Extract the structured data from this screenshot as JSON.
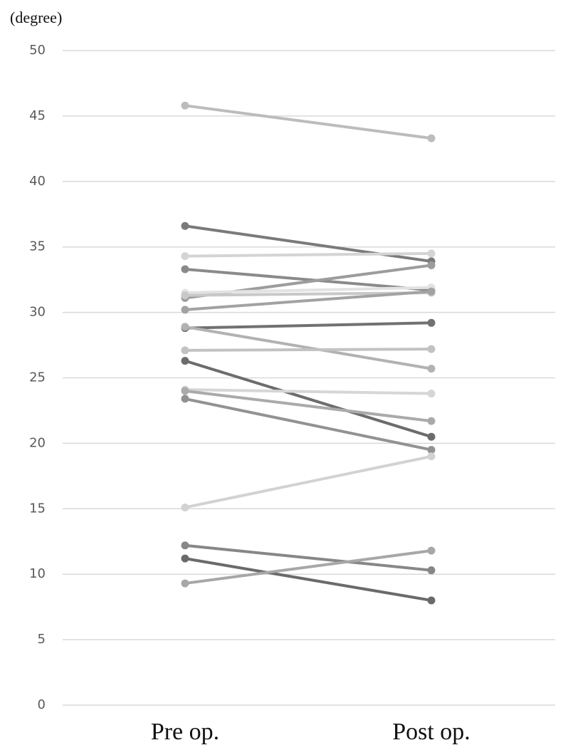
{
  "chart_data": {
    "type": "line",
    "y_label": "(degree)",
    "categories": [
      "Pre op.",
      "Post op."
    ],
    "ylim": [
      0,
      50
    ],
    "yticks": [
      0,
      5,
      10,
      15,
      20,
      25,
      30,
      35,
      40,
      45,
      50
    ],
    "grid": true,
    "series": [
      {
        "color": "#bcbcbc",
        "values": [
          45.8,
          43.3
        ]
      },
      {
        "color": "#7a7a7a",
        "values": [
          36.6,
          33.9
        ]
      },
      {
        "color": "#d4d4d4",
        "values": [
          34.3,
          34.5
        ]
      },
      {
        "color": "#8a8a8a",
        "values": [
          33.3,
          31.7
        ]
      },
      {
        "color": "#9c9c9c",
        "values": [
          31.1,
          33.6
        ]
      },
      {
        "color": "#e2e2e2",
        "values": [
          31.5,
          31.9
        ]
      },
      {
        "color": "#c8c8c8",
        "values": [
          31.3,
          31.5
        ]
      },
      {
        "color": "#a2a2a2",
        "values": [
          30.2,
          31.6
        ]
      },
      {
        "color": "#717171",
        "values": [
          28.8,
          29.2
        ]
      },
      {
        "color": "#b2b2b2",
        "values": [
          28.9,
          25.7
        ]
      },
      {
        "color": "#c2c2c2",
        "values": [
          27.1,
          27.2
        ]
      },
      {
        "color": "#6c6c6c",
        "values": [
          26.3,
          20.5
        ]
      },
      {
        "color": "#d6d6d6",
        "values": [
          24.1,
          23.8
        ]
      },
      {
        "color": "#aaaaaa",
        "values": [
          24.0,
          21.7
        ]
      },
      {
        "color": "#929292",
        "values": [
          23.4,
          19.5
        ]
      },
      {
        "color": "#d2d2d2",
        "values": [
          15.1,
          19.0
        ]
      },
      {
        "color": "#878787",
        "values": [
          12.2,
          10.3
        ]
      },
      {
        "color": "#6a6a6a",
        "values": [
          11.2,
          8.0
        ]
      },
      {
        "color": "#a7a7a7",
        "values": [
          9.3,
          11.8
        ]
      }
    ]
  }
}
